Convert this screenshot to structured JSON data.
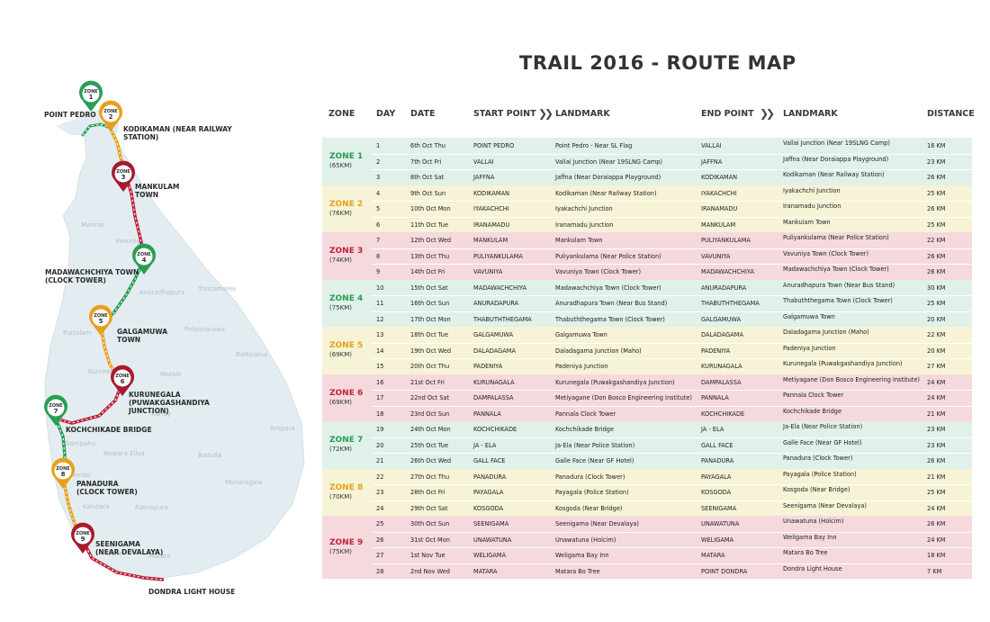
{
  "title": "TRAIL 2016 - ROUTE MAP",
  "headers": {
    "zone": "ZONE",
    "day": "DAY",
    "date": "DATE",
    "start_point": "START POINT",
    "landmark1": "LANDMARK",
    "end_point": "END POINT",
    "landmark2": "LANDMARK",
    "distance": "DISTANCE",
    "arrow": "❯❯"
  },
  "zones": [
    {
      "name": "ZONE 1",
      "km": "(65KM)",
      "bg": "#dff1e8",
      "color": "#2a9d55",
      "rows": [
        [
          "1",
          "6th Oct Thu",
          "POINT PEDRO",
          "Point Pedro - Near SL Flag",
          "VALLAI",
          "Vallai Junction (Near 19SLNG Camp)",
          "16 KM"
        ],
        [
          "2",
          "7th Oct Fri",
          "VALLAI",
          "Vallai Junction (Near 19SLNG Camp)",
          "JAFFNA",
          "Jaffna (Near Doraiappa Playground)",
          "23 KM"
        ],
        [
          "3",
          "8th Oct Sat",
          "JAFFNA",
          "Jaffna (Near Doraiappa Playground)",
          "KODIKAMAN",
          "Kodikaman (Near Railway Station)",
          "26 KM"
        ]
      ]
    },
    {
      "name": "ZONE 2",
      "km": "(76KM)",
      "bg": "#f6f3d6",
      "color": "#e8a01c",
      "rows": [
        [
          "4",
          "9th Oct Sun",
          "KODIKAMAN",
          "Kodikaman (Near Railway Station)",
          "IYAKACHCHI",
          "Iyakachchi Junction",
          "25 KM"
        ],
        [
          "5",
          "10th Oct Mon",
          "IYAKACHCHI",
          "Iyakachchi Junction",
          "IRANAMADU",
          "Iranamadu Junction",
          "26 KM"
        ],
        [
          "6",
          "11th Oct Tue",
          "IRANAMADU",
          "Iranamadu Junction",
          "MANKULAM",
          "Mankulam Town",
          "25 KM"
        ]
      ]
    },
    {
      "name": "ZONE 3",
      "km": "(74KM)",
      "bg": "#f5d9dd",
      "color": "#c0243d",
      "rows": [
        [
          "7",
          "12th Oct Wed",
          "MANKULAM",
          "Mankulam Town",
          "PULIYANKULAMA",
          "Puliyankulama (Near Police Station)",
          "22 KM"
        ],
        [
          "8",
          "13th Oct Thu",
          "PULIYANKULAMA",
          "Puliyankulama (Near Police Station)",
          "VAVUNIYA",
          "Vavuniya Town (Clock Tower)",
          "26 KM"
        ],
        [
          "9",
          "14th Oct Fri",
          "VAVUNIYA",
          "Vavuniya Town (Clock Tower)",
          "MADAWACHCHIYA",
          "Madawachchiya Town (Clock Tower)",
          "26 KM"
        ]
      ]
    },
    {
      "name": "ZONE 4",
      "km": "(75KM)",
      "bg": "#dff1e8",
      "color": "#2a9d55",
      "rows": [
        [
          "10",
          "15th Oct Sat",
          "MADAWACHCHIYA",
          "Madawachchiya Town (Clock Tower)",
          "ANURADAPURA",
          "Anuradhapura Town (Near Bus Stand)",
          "30 KM"
        ],
        [
          "11",
          "16th Oct Sun",
          "ANURADAPURA",
          "Anuradhapura Town (Near Bus Stand)",
          "THABUTHTHEGAMA",
          "Thabuththegama Town (Clock Tower)",
          "25 KM"
        ],
        [
          "12",
          "17th Oct Mon",
          "THABUTHTHEGAMA",
          "Thabuththegama Town (Clock Tower)",
          "GALGAMUWA",
          "Galgamuwa Town",
          "20 KM"
        ]
      ]
    },
    {
      "name": "ZONE 5",
      "km": "(69KM)",
      "bg": "#f6f3d6",
      "color": "#e8a01c",
      "rows": [
        [
          "13",
          "18th Oct Tue",
          "GALGAMUWA",
          "Galgamuwa Town",
          "DALADAGAMA",
          "Daladagama Junction (Maho)",
          "22 KM"
        ],
        [
          "14",
          "19th Oct Wed",
          "DALADAGAMA",
          "Daladagama Junction (Maho)",
          "PADENIYA",
          "Padeniya Junction",
          "20 KM"
        ],
        [
          "15",
          "20th Oct Thu",
          "PADENIYA",
          "Padeniya Junction",
          "KURUNAGALA",
          "Kurunegala (Puwakgashandiya Junction)",
          "27 KM"
        ]
      ]
    },
    {
      "name": "ZONE 6",
      "km": "(69KM)",
      "bg": "#f5d9dd",
      "color": "#c0243d",
      "rows": [
        [
          "16",
          "21st Oct Fri",
          "KURUNAGALA",
          "Kurunegala (Puwakgashandiya Junction)",
          "DAMPALASSA",
          "Metiyagane (Don Bosco Engineering Institute)",
          "24 KM"
        ],
        [
          "17",
          "22nd Oct Sat",
          "DAMPALASSA",
          "Metiyagane (Don Bosco Engineering Institute)",
          "PANNALA",
          "Pannala Clock Tower",
          "24 KM"
        ],
        [
          "18",
          "23rd Oct Sun",
          "PANNALA",
          "Pannala Clock Tower",
          "KOCHCHIKADE",
          "Kochchikade Bridge",
          "21 KM"
        ]
      ]
    },
    {
      "name": "ZONE 7",
      "km": "(72KM)",
      "bg": "#dff1e8",
      "color": "#2a9d55",
      "rows": [
        [
          "19",
          "24th Oct Mon",
          "KOCHCHIKADE",
          "Kochchikade Bridge",
          "JA - ELA",
          "Ja-Ela (Near Police Station)",
          "23 KM"
        ],
        [
          "20",
          "25th Oct Tue",
          "JA - ELA",
          "Ja-Ela (Near Police Station)",
          "GALL FACE",
          "Galle Face (Near GF Hotel)",
          "23 KM"
        ],
        [
          "21",
          "26th Oct Wed",
          "GALL FACE",
          "Galle Face (Near GF Hotel)",
          "PANADURA",
          "Panadura  (Clock Tower)",
          "26 KM"
        ]
      ]
    },
    {
      "name": "ZONE 8",
      "km": "(70KM)",
      "bg": "#f6f3d6",
      "color": "#e8a01c",
      "rows": [
        [
          "22",
          "27th Oct Thu",
          "PANADURA",
          "Panadura  (Clock Tower)",
          "PAYAGALA",
          "Payagala (Police Station)",
          "21 KM"
        ],
        [
          "23",
          "28th Oct Fri",
          "PAYAGALA",
          "Payagala (Police Station)",
          "KOSGODA",
          "Kosgoda (Near Bridge)",
          "25 KM"
        ],
        [
          "24",
          "29th Oct Sat",
          "KOSGODA",
          "Kosgoda (Near Bridge)",
          "SEENIGAMA",
          "Seenigama (Near Devalaya)",
          "24 KM"
        ]
      ]
    },
    {
      "name": "ZONE 9",
      "km": "(75KM)",
      "bg": "#f5d9dd",
      "color": "#c0243d",
      "rows": [
        [
          "25",
          "30th Oct Sun",
          "SEENIGAMA",
          "Seenigama (Near Devalaya)",
          "UNAWATUNA",
          "Unawatuna (Holcim)",
          "26 KM"
        ],
        [
          "26",
          "31st Oct Mon",
          "UNAWATUNA",
          "Unawatuna (Holcim)",
          "WELIGAMA",
          "Weligama Bay Inn",
          "24 KM"
        ],
        [
          "27",
          "1st Nov Tue",
          "WELIGAMA",
          "Weligama Bay Inn",
          "MATARA",
          "Matara Bo Tree",
          "18 KM"
        ],
        [
          "28",
          "2nd Nov Wed",
          "MATARA",
          "Matara Bo Tree",
          "POINT DONDRA",
          "Dondra Light House",
          "7 KM"
        ]
      ]
    }
  ],
  "map": {
    "labels": {
      "point_pedro": "POINT PEDRO",
      "kodikaman": "KODIKAMAN (NEAR RAILWAY\nSTATION)",
      "mankulam": "MANKULAM\nTOWN",
      "madawachchiya": "MADAWACHCHIYA TOWN\n(CLOCK TOWER)",
      "galgamuwa": "GALGAMUWA\nTOWN",
      "kurunegala": "KURUNEGALA\n(PUWAKGASHANDIYA\nJUNCTION)",
      "kochchikade": "KOCHCHIKADE BRIDGE",
      "panadura": "PANADURA\n(CLOCK TOWER)",
      "seenigama": "SEENIGAMA\n(NEAR DEVALAYA)",
      "dondra": "DONDRA LIGHT HOUSE"
    },
    "pins": [
      {
        "zone": "ZONE",
        "num": "1",
        "color": "#2a9d55"
      },
      {
        "zone": "ZONE",
        "num": "2",
        "color": "#e8a01c"
      },
      {
        "zone": "ZONE",
        "num": "3",
        "color": "#a8192f"
      },
      {
        "zone": "ZONE",
        "num": "4",
        "color": "#2a9d55"
      },
      {
        "zone": "ZONE",
        "num": "5",
        "color": "#e8a01c"
      },
      {
        "zone": "ZONE",
        "num": "6",
        "color": "#a8192f"
      },
      {
        "zone": "ZONE",
        "num": "7",
        "color": "#2a9d55"
      },
      {
        "zone": "ZONE",
        "num": "8",
        "color": "#e8a01c"
      },
      {
        "zone": "ZONE",
        "num": "9",
        "color": "#a8192f"
      }
    ],
    "faint_places": [
      "Mannar",
      "Vavuniya",
      "Anuradhapura",
      "Trincomalee",
      "Puttalam",
      "Polonnaruwa",
      "Batticaloa",
      "Kurunegala",
      "Matale",
      "Ampara",
      "Gampaha",
      "Kandy",
      "Colombo",
      "Nuwara Eliya",
      "Badulla",
      "Monaragala",
      "Kalutara",
      "Ratnapura",
      "Galle",
      "Matara"
    ]
  }
}
